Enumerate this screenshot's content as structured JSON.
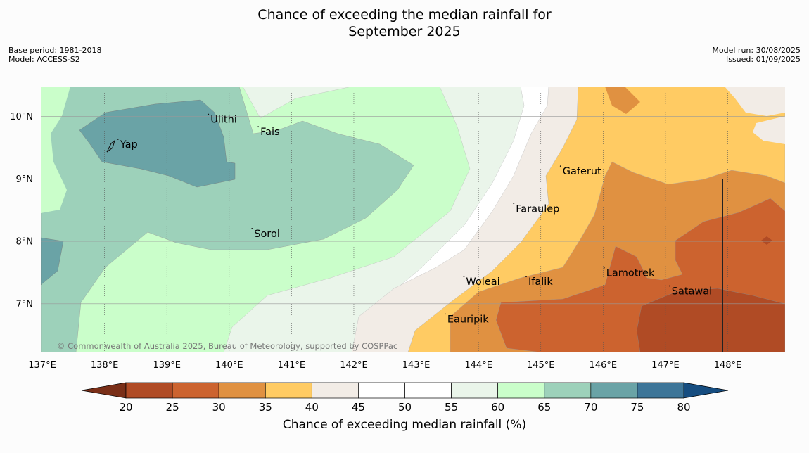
{
  "title_line1": "Chance of exceeding the median rainfall for",
  "title_line2": "September 2025",
  "meta_left": {
    "base_period": "Base period: 1981-2018",
    "model": "Model: ACCESS-S2"
  },
  "meta_right": {
    "model_run": "Model run: 30/08/2025",
    "issued": "Issued: 01/09/2025"
  },
  "map": {
    "lon_ticks": [
      "137°E",
      "138°E",
      "139°E",
      "140°E",
      "141°E",
      "142°E",
      "143°E",
      "144°E",
      "145°E",
      "146°E",
      "147°E",
      "148°E"
    ],
    "lat_ticks": [
      "10°N",
      "9°N",
      "8°N",
      "7°N"
    ],
    "places": [
      {
        "name": "Yap",
        "lon": 138.25,
        "lat": 9.5
      },
      {
        "name": "Ulithi",
        "lon": 139.7,
        "lat": 9.9
      },
      {
        "name": "Fais",
        "lon": 140.5,
        "lat": 9.7
      },
      {
        "name": "Sorol",
        "lon": 140.4,
        "lat": 8.07
      },
      {
        "name": "Gaferut",
        "lon": 145.35,
        "lat": 9.07
      },
      {
        "name": "Faraulep",
        "lon": 144.6,
        "lat": 8.47
      },
      {
        "name": "Woleai",
        "lon": 143.8,
        "lat": 7.3
      },
      {
        "name": "Ifalik",
        "lon": 144.8,
        "lat": 7.3
      },
      {
        "name": "Lamotrek",
        "lon": 146.05,
        "lat": 7.44
      },
      {
        "name": "Satawal",
        "lon": 147.1,
        "lat": 7.15
      },
      {
        "name": "Eauripik",
        "lon": 143.5,
        "lat": 6.7
      }
    ],
    "copyright": "© Commonwealth of Australia 2025, Bureau of Meteorology, supported by COSPPac"
  },
  "colorbar": {
    "labels": [
      "20",
      "25",
      "30",
      "35",
      "40",
      "45",
      "50",
      "55",
      "60",
      "65",
      "70",
      "75",
      "80"
    ],
    "colors": [
      "#b04b25",
      "#cc632f",
      "#e09141",
      "#ffcb63",
      "#f2ece6",
      "#ffffff",
      "#ffffff",
      "#eaf5ea",
      "#cafeca",
      "#9dd1ba",
      "#6aa3a6",
      "#3d7598"
    ],
    "under_color": "#7a2f18",
    "over_color": "#164d80",
    "title": "Chance of exceeding median rainfall (%)"
  }
}
